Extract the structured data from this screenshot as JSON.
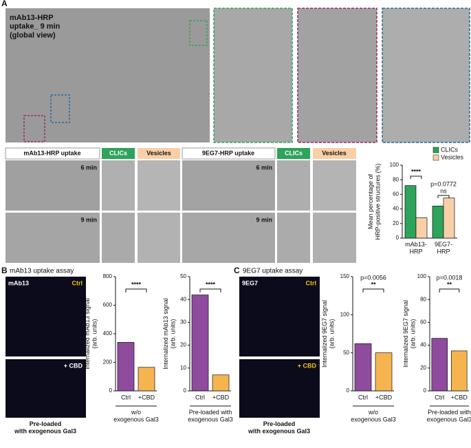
{
  "panel_a": {
    "label": "A",
    "global_view": "mAb13-HRP\nuptake_ 9 min\n(global view)",
    "blocks": [
      {
        "title": "mAb13-HRP uptake",
        "clics": "CLICs",
        "vesicles": "Vesicles",
        "times": [
          "6 min",
          "9 min"
        ]
      },
      {
        "title": "9EG7-HRP uptake",
        "clics": "CLICs",
        "vesicles": "Vesicles",
        "times": [
          "6 min",
          "9 min"
        ]
      }
    ]
  },
  "panel_b": {
    "label": "B",
    "title": "mAb13 uptake assay",
    "antibody": "mAb13",
    "ctrl": "Ctrl",
    "cbd": "+ CBD",
    "caption": "Pre-loaded\nwith exogenous Gal3"
  },
  "panel_c": {
    "label": "C",
    "title": "9EG7 uptake assay",
    "antibody": "9EG7",
    "ctrl": "Ctrl",
    "cbd": "+ CBD",
    "caption": "Pre-loaded\nwith exogenous Gal3"
  },
  "chart_data": [
    {
      "type": "bar",
      "ylabel": "Mean percentage of\nHRP-positive structures (%)",
      "categories": [
        "mAb13-\nHRP",
        "9EG7-\nHRP"
      ],
      "series": [
        {
          "name": "CLICs",
          "color": "#2ea35a",
          "values": [
            72,
            44
          ]
        },
        {
          "name": "Vesicles",
          "color": "#f9cfa8",
          "values": [
            28,
            55
          ]
        }
      ],
      "ylim": [
        0,
        100
      ],
      "yticks": [
        0,
        20,
        40,
        60,
        80,
        100
      ],
      "annotations": [
        "****",
        "p=0.0772",
        "ns"
      ]
    },
    {
      "type": "bar",
      "ylabel": "Internalized mAb13 signal\n(arb. units)",
      "categories": [
        "Ctrl",
        "+CBD"
      ],
      "values": [
        340,
        165
      ],
      "colors": [
        "#7b2c8c",
        "#f4a732"
      ],
      "ylim": [
        0,
        800
      ],
      "yticks": [
        0,
        200,
        400,
        600,
        800
      ],
      "annotations": [
        "****"
      ],
      "xlabel": "w/o\nexogenous Gal3"
    },
    {
      "type": "bar",
      "ylabel": "Internalized mAb13 signal\n(arb. units)",
      "categories": [
        "Ctrl",
        "+CBD"
      ],
      "values": [
        42,
        7
      ],
      "colors": [
        "#7b2c8c",
        "#f4a732"
      ],
      "ylim": [
        0,
        50
      ],
      "yticks": [
        0,
        10,
        20,
        30,
        40,
        50
      ],
      "annotations": [
        "****"
      ],
      "xlabel": "Pre-loaded with\nexogenous Gal3"
    },
    {
      "type": "bar",
      "ylabel": "Internalized 9EG7 signal\n(arb. units)",
      "categories": [
        "Ctrl",
        "+CBD"
      ],
      "values": [
        62,
        50
      ],
      "colors": [
        "#7b2c8c",
        "#f4a732"
      ],
      "ylim": [
        0,
        150
      ],
      "yticks": [
        0,
        50,
        100,
        150
      ],
      "annotations": [
        "p=0.0056",
        "**"
      ],
      "xlabel": "w/o\nexogenous Gal3"
    },
    {
      "type": "bar",
      "ylabel": "Internalized 9EG7 signal\n(arb. units)",
      "categories": [
        "Ctrl",
        "+CBD"
      ],
      "values": [
        46,
        35
      ],
      "colors": [
        "#7b2c8c",
        "#f4a732"
      ],
      "ylim": [
        0,
        100
      ],
      "yticks": [
        0,
        20,
        40,
        60,
        80,
        100
      ],
      "annotations": [
        "p=0.0018",
        "**"
      ],
      "xlabel": "Pre-loaded with\nexogenous Gal3"
    }
  ]
}
